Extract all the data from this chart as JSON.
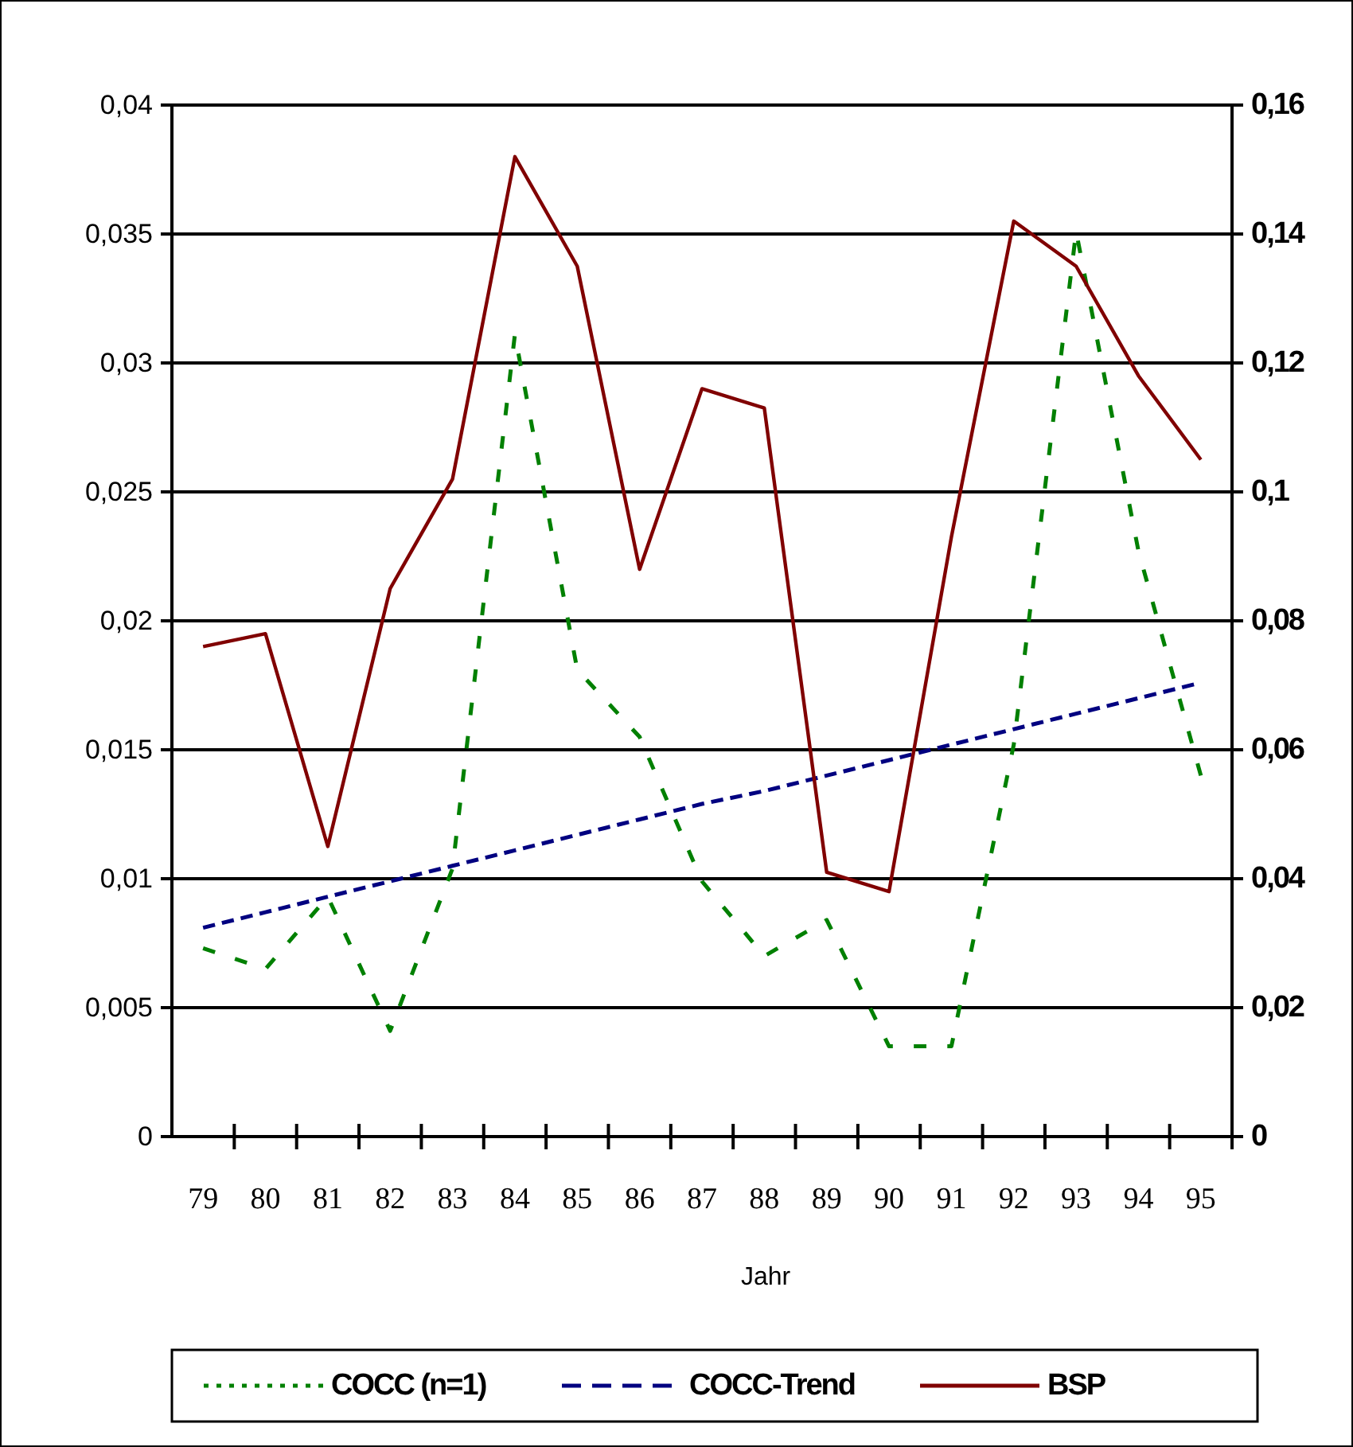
{
  "chart_data": {
    "type": "line",
    "xlabel": "Jahr",
    "categories": [
      "79",
      "80",
      "81",
      "82",
      "83",
      "84",
      "85",
      "86",
      "87",
      "88",
      "89",
      "90",
      "91",
      "92",
      "93",
      "94",
      "95"
    ],
    "series": [
      {
        "name": "COCC (n=1)",
        "color": "#008000",
        "line_style": "dotted",
        "values": [
          0.0073,
          0.0065,
          0.0093,
          0.0041,
          0.0104,
          0.0311,
          0.0181,
          0.0155,
          0.0099,
          0.007,
          0.0084,
          0.0035,
          0.0035,
          0.0152,
          0.0351,
          0.0227,
          0.014
        ]
      },
      {
        "name": "COCC-Trend",
        "color": "#000080",
        "line_style": "dashed",
        "values": [
          0.0081,
          0.0087,
          0.0093,
          0.0099,
          0.0105,
          0.0111,
          0.0117,
          0.0123,
          0.0129,
          0.0134,
          0.014,
          0.0146,
          0.0152,
          0.0158,
          0.0164,
          0.017,
          0.0176
        ]
      },
      {
        "name": "BSP",
        "color": "#800000",
        "line_style": "solid",
        "axis": "y2",
        "values": [
          0.076,
          0.078,
          0.045,
          0.085,
          0.102,
          0.152,
          0.135,
          0.088,
          0.116,
          0.113,
          0.041,
          0.038,
          0.093,
          0.142,
          0.135,
          0.118,
          0.105
        ]
      }
    ],
    "ylim": [
      0,
      0.04
    ],
    "yticks": [
      0,
      {
        "value": 0.005,
        "label": "0,005"
      },
      {
        "value": 0.01,
        "label": "0,01"
      },
      {
        "value": 0.015,
        "label": "0,015"
      },
      {
        "value": 0.02,
        "label": "0,02"
      },
      {
        "value": 0.025,
        "label": "0,025"
      },
      {
        "value": 0.03,
        "label": "0,03"
      },
      {
        "value": 0.035,
        "label": "0,035"
      },
      {
        "value": 0.04,
        "label": "0,04"
      }
    ],
    "y2lim": [
      0,
      0.16
    ],
    "y2ticks": [
      0,
      {
        "value": 0.02,
        "label": "0,02"
      },
      {
        "value": 0.04,
        "label": "0,04"
      },
      {
        "value": 0.06,
        "label": "0,06"
      },
      {
        "value": 0.08,
        "label": "0,08"
      },
      {
        "value": 0.1,
        "label": "0,1"
      },
      {
        "value": 0.12,
        "label": "0,12"
      },
      {
        "value": 0.14,
        "label": "0,14"
      },
      {
        "value": 0.16,
        "label": "0,16"
      }
    ],
    "grid": "y",
    "legend": "bottom"
  }
}
